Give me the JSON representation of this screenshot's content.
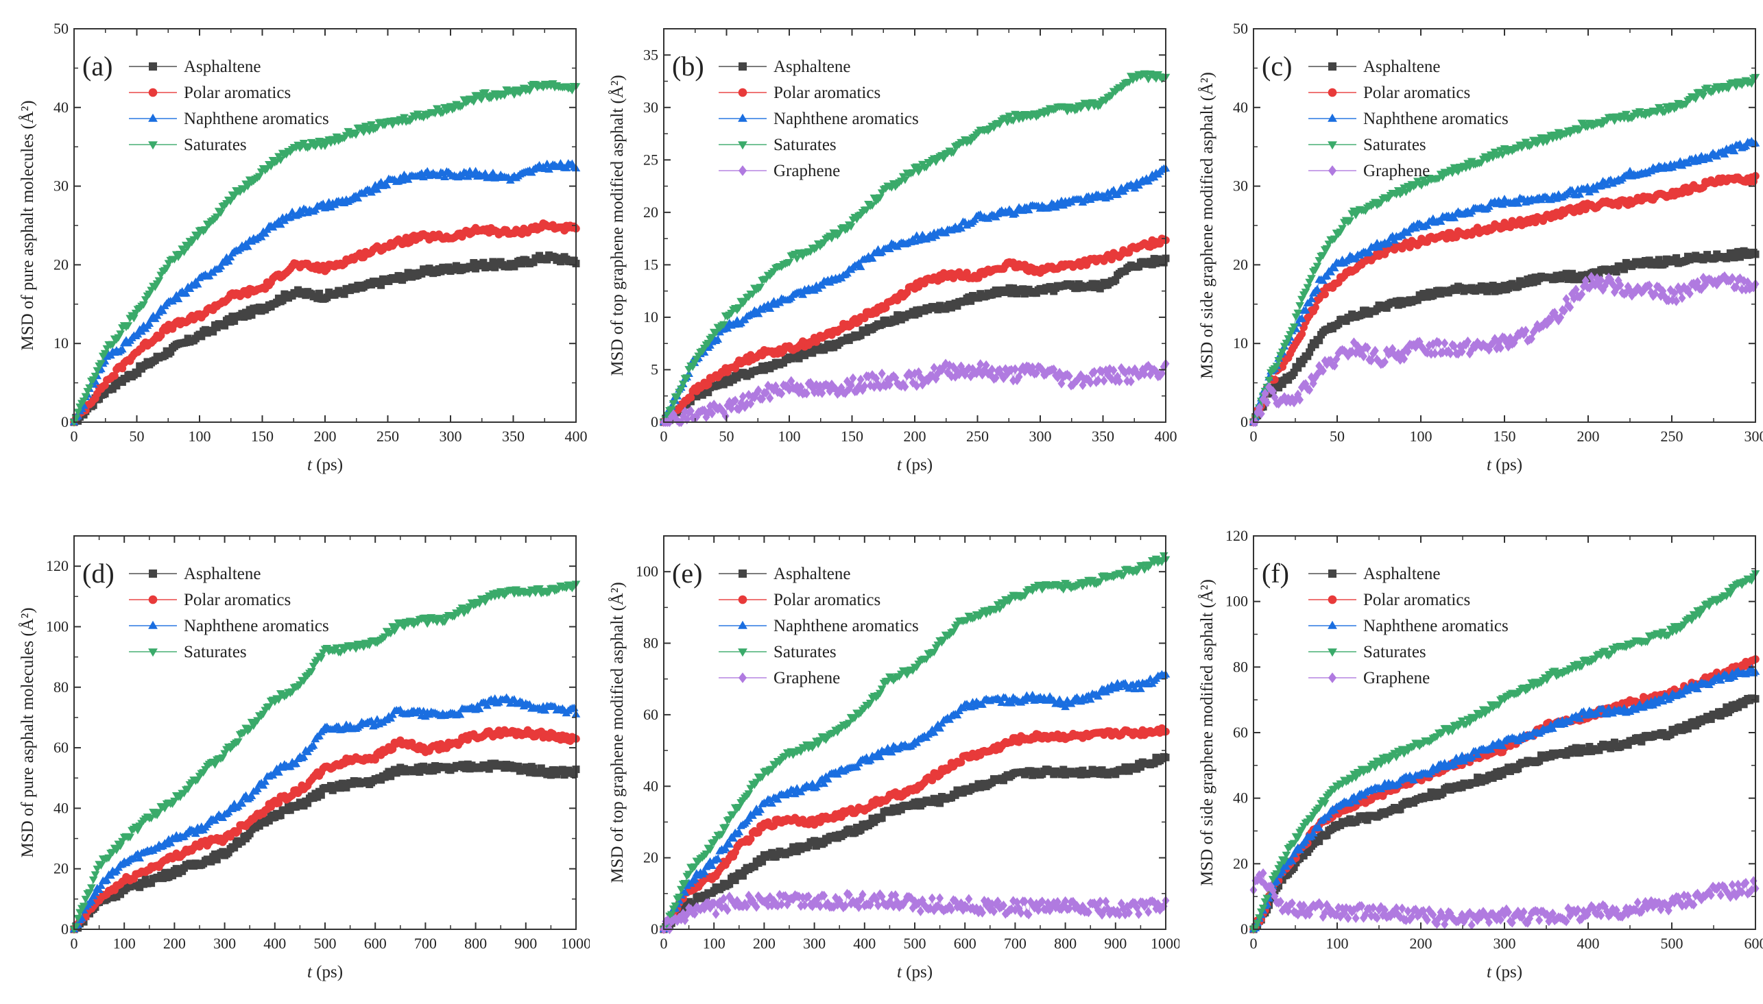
{
  "series_styles": {
    "Asphaltene": {
      "color": "#444444",
      "marker": "square"
    },
    "Polar aromatics": {
      "color": "#e83a3a",
      "marker": "circle"
    },
    "Naphthene aromatics": {
      "color": "#1a6ee0",
      "marker": "triangle-up"
    },
    "Saturates": {
      "color": "#3aaa6a",
      "marker": "triangle-down"
    },
    "Graphene": {
      "color": "#b07ae0",
      "marker": "diamond"
    }
  },
  "chart_data": [
    {
      "type": "scatter",
      "panel_label": "(a)",
      "title": "",
      "xlabel_italic": "t",
      "xlabel_rest": " (ps)",
      "ylabel": "MSD of pure asphalt molecules (Å²)",
      "xlim": [
        0,
        400
      ],
      "ylim": [
        0,
        50
      ],
      "xticks": [
        0,
        50,
        100,
        150,
        200,
        250,
        300,
        350,
        400
      ],
      "yticks": [
        0,
        10,
        20,
        30,
        40,
        50
      ],
      "legend": [
        "Asphaltene",
        "Polar aromatics",
        "Naphthene aromatics",
        "Saturates"
      ],
      "legend_position": "top-left",
      "x": [
        0,
        25,
        50,
        75,
        100,
        125,
        150,
        175,
        200,
        225,
        250,
        275,
        300,
        325,
        350,
        375,
        400
      ],
      "series": [
        {
          "name": "Asphaltene",
          "values": [
            0,
            4,
            6.5,
            9,
            11,
            13,
            14.5,
            16.5,
            16,
            17,
            18,
            19,
            19.5,
            20,
            20,
            21,
            20.5
          ]
        },
        {
          "name": "Polar aromatics",
          "values": [
            0,
            5,
            9,
            12,
            13.5,
            16,
            17,
            20,
            19.5,
            21,
            22.5,
            23.5,
            23.5,
            24.5,
            24,
            25,
            24.5
          ]
        },
        {
          "name": "Naphthene aromatics",
          "values": [
            0,
            8,
            11,
            15,
            18,
            21,
            24,
            26.5,
            27.5,
            28.5,
            30.5,
            31.5,
            31.5,
            31.5,
            31,
            32.5,
            32.5
          ]
        },
        {
          "name": "Saturates",
          "values": [
            0,
            9,
            14,
            20,
            24,
            28.5,
            32,
            35,
            35.5,
            37,
            38,
            39,
            40,
            41.5,
            42,
            43,
            42.5
          ]
        }
      ]
    },
    {
      "type": "scatter",
      "panel_label": "(b)",
      "title": "",
      "xlabel_italic": "t",
      "xlabel_rest": " (ps)",
      "ylabel": "MSD of top graphene modified asphalt (Å²)",
      "xlim": [
        0,
        400
      ],
      "ylim": [
        0,
        37.5
      ],
      "xticks": [
        0,
        50,
        100,
        150,
        200,
        250,
        300,
        350,
        400
      ],
      "yticks": [
        0,
        5,
        10,
        15,
        20,
        25,
        30,
        35
      ],
      "legend": [
        "Asphaltene",
        "Polar aromatics",
        "Naphthene aromatics",
        "Saturates",
        "Graphene"
      ],
      "legend_position": "top-left",
      "x": [
        0,
        25,
        50,
        75,
        100,
        125,
        150,
        175,
        200,
        225,
        250,
        275,
        300,
        325,
        350,
        375,
        400
      ],
      "series": [
        {
          "name": "Asphaltene",
          "values": [
            0,
            2.5,
            4,
            5,
            6,
            7,
            8,
            9.5,
            10.5,
            11,
            12,
            12.5,
            12.5,
            13,
            13,
            15,
            15.5
          ]
        },
        {
          "name": "Polar aromatics",
          "values": [
            0,
            3,
            5,
            6.5,
            7,
            8,
            9.5,
            11,
            13,
            14,
            14,
            15,
            14.5,
            15,
            15.5,
            16.5,
            17.5
          ]
        },
        {
          "name": "Naphthene aromatics",
          "values": [
            0,
            6,
            9,
            10.5,
            12,
            13,
            14.5,
            16.5,
            17.5,
            18,
            19.5,
            20,
            20.5,
            21,
            21.5,
            22.5,
            24
          ]
        },
        {
          "name": "Saturates",
          "values": [
            0,
            6,
            10,
            13,
            15.5,
            17,
            19,
            22,
            24,
            25.5,
            27.5,
            29,
            29.5,
            30,
            30.5,
            33,
            33
          ]
        },
        {
          "name": "Graphene",
          "values": [
            0,
            0.8,
            1.2,
            2.5,
            3.5,
            3,
            3.5,
            4,
            4,
            5,
            5,
            4.5,
            5,
            4,
            4.5,
            4.5,
            5
          ]
        }
      ]
    },
    {
      "type": "scatter",
      "panel_label": "(c)",
      "title": "",
      "xlabel_italic": "t",
      "xlabel_rest": " (ps)",
      "ylabel": "MSD of side graphene modified asphalt (Å²)",
      "xlim": [
        0,
        300
      ],
      "ylim": [
        0,
        50
      ],
      "xticks": [
        0,
        50,
        100,
        150,
        200,
        250,
        300
      ],
      "yticks": [
        0,
        10,
        20,
        30,
        40,
        50
      ],
      "legend": [
        "Asphaltene",
        "Polar aromatics",
        "Naphthene aromatics",
        "Saturates",
        "Graphene"
      ],
      "legend_position": "top-left",
      "x": [
        0,
        10,
        20,
        30,
        40,
        50,
        60,
        75,
        100,
        125,
        150,
        175,
        200,
        225,
        250,
        275,
        300
      ],
      "series": [
        {
          "name": "Asphaltene",
          "values": [
            0,
            4,
            5.5,
            8,
            11,
            12.5,
            13.5,
            14.5,
            16,
            17,
            17,
            18.5,
            18.5,
            20,
            20.5,
            21,
            21.5
          ]
        },
        {
          "name": "Polar aromatics",
          "values": [
            0,
            5,
            8,
            12,
            16,
            18,
            19.5,
            21.5,
            23,
            24,
            25,
            26,
            27.5,
            28,
            29,
            30.5,
            31
          ]
        },
        {
          "name": "Naphthene aromatics",
          "values": [
            0,
            6,
            10,
            14,
            18,
            20,
            21,
            22.5,
            25,
            26.5,
            28,
            28.5,
            29.5,
            31.5,
            32.5,
            34,
            35.5
          ]
        },
        {
          "name": "Saturates",
          "values": [
            0,
            6,
            10,
            16,
            21,
            24,
            26.5,
            28,
            30.5,
            32.5,
            34.5,
            36,
            38,
            39,
            40,
            42.5,
            43.5
          ]
        },
        {
          "name": "Graphene",
          "values": [
            0,
            4,
            2,
            4,
            6.5,
            8,
            9.5,
            8,
            9.5,
            9.5,
            10,
            12,
            18,
            17,
            16,
            18,
            17.5
          ]
        }
      ]
    },
    {
      "type": "scatter",
      "panel_label": "(d)",
      "title": "",
      "xlabel_italic": "t",
      "xlabel_rest": " (ps)",
      "ylabel": "MSD of pure asphalt molecules (Å²)",
      "xlim": [
        0,
        1000
      ],
      "ylim": [
        0,
        130
      ],
      "xticks": [
        0,
        100,
        200,
        300,
        400,
        500,
        600,
        700,
        800,
        900,
        1000
      ],
      "yticks": [
        0,
        20,
        40,
        60,
        80,
        100,
        120
      ],
      "legend": [
        "Asphaltene",
        "Polar aromatics",
        "Naphthene aromatics",
        "Saturates"
      ],
      "legend_position": "top-left",
      "x": [
        0,
        50,
        100,
        150,
        200,
        250,
        300,
        350,
        400,
        450,
        500,
        550,
        600,
        650,
        700,
        750,
        800,
        850,
        900,
        950,
        1000
      ],
      "series": [
        {
          "name": "Asphaltene",
          "values": [
            0,
            9,
            13,
            16,
            19,
            22,
            25,
            32,
            38,
            41,
            46,
            48,
            49,
            53,
            53,
            53,
            54,
            54,
            53,
            52,
            52
          ]
        },
        {
          "name": "Polar aromatics",
          "values": [
            0,
            10,
            16,
            20,
            24,
            28,
            30,
            36,
            42,
            46,
            53,
            56,
            57,
            62,
            59,
            61,
            64,
            65,
            65,
            64,
            63
          ]
        },
        {
          "name": "Naphthene aromatics",
          "values": [
            0,
            14,
            22,
            26,
            30,
            33,
            38,
            44,
            52,
            56,
            66,
            67,
            68,
            72,
            71,
            71,
            73,
            76,
            74,
            73,
            72
          ]
        },
        {
          "name": "Saturates",
          "values": [
            0,
            21,
            30,
            37,
            43,
            51,
            58,
            67,
            76,
            81,
            92,
            93,
            95,
            101,
            102,
            103,
            108,
            111,
            112,
            112,
            114
          ]
        }
      ]
    },
    {
      "type": "scatter",
      "panel_label": "(e)",
      "title": "",
      "xlabel_italic": "t",
      "xlabel_rest": " (ps)",
      "ylabel": "MSD of top graphene modified asphalt  (Å²)",
      "xlim": [
        0,
        1000
      ],
      "ylim": [
        0,
        110
      ],
      "xticks": [
        0,
        100,
        200,
        300,
        400,
        500,
        600,
        700,
        800,
        900,
        1000
      ],
      "yticks": [
        0,
        20,
        40,
        60,
        80,
        100
      ],
      "legend": [
        "Asphaltene",
        "Polar aromatics",
        "Naphthene aromatics",
        "Saturates",
        "Graphene"
      ],
      "legend_position": "top-left",
      "x": [
        0,
        50,
        100,
        150,
        200,
        250,
        300,
        350,
        400,
        450,
        500,
        550,
        600,
        650,
        700,
        750,
        800,
        850,
        900,
        950,
        1000
      ],
      "series": [
        {
          "name": "Asphaltene",
          "values": [
            0,
            7,
            11,
            15,
            20,
            22,
            24,
            26,
            29,
            33,
            35,
            36,
            39,
            41,
            43,
            44,
            44,
            44,
            44,
            46,
            48
          ]
        },
        {
          "name": "Polar aromatics",
          "values": [
            0,
            11,
            15,
            23,
            29,
            31,
            30,
            32,
            34,
            37,
            39,
            44,
            48,
            50,
            53,
            54,
            54,
            54,
            55,
            55,
            56
          ]
        },
        {
          "name": "Naphthene aromatics",
          "values": [
            0,
            13,
            19,
            28,
            35,
            38,
            40,
            44,
            47,
            50,
            52,
            57,
            62,
            64,
            64,
            65,
            63,
            65,
            68,
            68,
            71
          ]
        },
        {
          "name": "Saturates",
          "values": [
            0,
            16,
            24,
            35,
            44,
            49,
            52,
            56,
            62,
            70,
            73,
            80,
            87,
            89,
            93,
            96,
            96,
            97,
            99,
            101,
            104
          ]
        },
        {
          "name": "Graphene",
          "values": [
            0,
            4,
            6,
            8,
            8,
            8,
            8,
            8,
            8,
            8,
            7,
            7,
            7,
            6,
            6,
            6,
            6,
            6,
            6,
            6,
            7
          ]
        }
      ]
    },
    {
      "type": "scatter",
      "panel_label": "(f)",
      "title": "",
      "xlabel_italic": "t",
      "xlabel_rest": " (ps)",
      "ylabel": "MSD of side graphene modified asphalt (Å²)",
      "xlim": [
        0,
        600
      ],
      "ylim": [
        0,
        120
      ],
      "xticks": [
        0,
        100,
        200,
        300,
        400,
        500,
        600
      ],
      "yticks": [
        0,
        20,
        40,
        60,
        80,
        100,
        120
      ],
      "legend": [
        "Asphaltene",
        "Polar aromatics",
        "Naphthene aromatics",
        "Saturates",
        "Graphene"
      ],
      "legend_position": "top-left",
      "x": [
        0,
        10,
        25,
        50,
        75,
        100,
        150,
        200,
        250,
        300,
        350,
        400,
        450,
        500,
        550,
        600
      ],
      "series": [
        {
          "name": "Asphaltene",
          "values": [
            0,
            3,
            12,
            20,
            27,
            32,
            35,
            40,
            44,
            48,
            53,
            55,
            57,
            60,
            65,
            71
          ]
        },
        {
          "name": "Polar aromatics",
          "values": [
            0,
            4,
            14,
            22,
            31,
            36,
            41,
            46,
            51,
            55,
            62,
            65,
            69,
            72,
            77,
            82
          ]
        },
        {
          "name": "Naphthene aromatics",
          "values": [
            0,
            4,
            14,
            23,
            31,
            37,
            43,
            47,
            52,
            57,
            61,
            66,
            67,
            71,
            76,
            79
          ]
        },
        {
          "name": "Saturates",
          "values": [
            0,
            6,
            16,
            28,
            36,
            44,
            51,
            57,
            63,
            70,
            77,
            82,
            87,
            91,
            100,
            108
          ]
        },
        {
          "name": "Graphene",
          "values": [
            12,
            17,
            9,
            6,
            6,
            5,
            5,
            4,
            3,
            4,
            4,
            5,
            6,
            8,
            11,
            13
          ]
        }
      ]
    }
  ]
}
